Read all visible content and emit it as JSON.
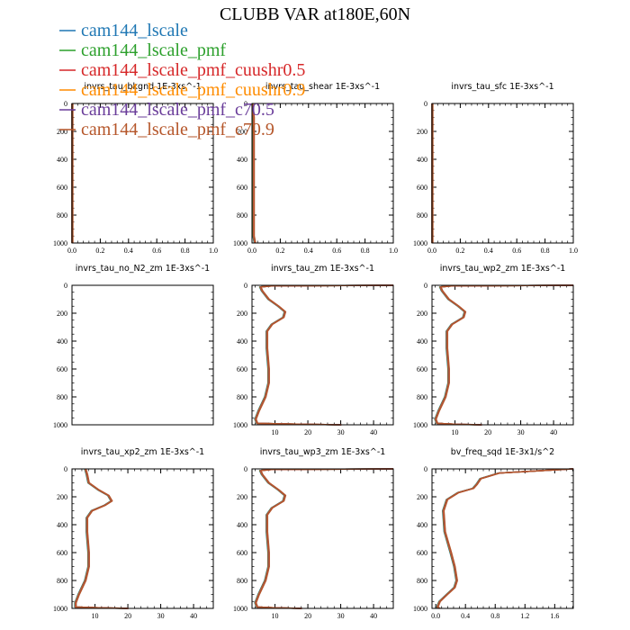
{
  "title": "CLUBB VAR at180E,60N",
  "series": [
    {
      "name": "cam144_lscale",
      "color": "#1f77b4"
    },
    {
      "name": "cam144_lscale_pmf",
      "color": "#2ca02c"
    },
    {
      "name": "cam144_lscale_pmf_cuushr0.5",
      "color": "#d62728"
    },
    {
      "name": "cam144_lscale_pmf_cuushr0.9",
      "color": "#ff8c00"
    },
    {
      "name": "cam144_lscale_pmf_c70.5",
      "color": "#6a3d9a"
    },
    {
      "name": "cam144_lscale_pmf_c70.9",
      "color": "#b5562a"
    }
  ],
  "chart_data": [
    {
      "type": "line",
      "title": "invrs_tau_bkgnd   1E-3xs^-1",
      "xlim": [
        0,
        1
      ],
      "ylim": [
        1000,
        0
      ],
      "xticks": [
        "0.0",
        "0.2",
        "0.4",
        "0.6",
        "0.8",
        "1.0"
      ],
      "yticks": [
        "0",
        "200",
        "400",
        "600",
        "800",
        "1000"
      ],
      "profile": {
        "x": [
          0,
          0
        ],
        "y": [
          0,
          1000
        ]
      }
    },
    {
      "type": "line",
      "title": "invrs_tau_shear   1E-3xs^-1",
      "xlim": [
        0,
        1
      ],
      "ylim": [
        1000,
        0
      ],
      "xticks": [
        "0.0",
        "0.2",
        "0.4",
        "0.6",
        "0.8",
        "1.0"
      ],
      "yticks": [
        "0",
        "200",
        "400",
        "600",
        "800",
        "1000"
      ],
      "profile": {
        "x": [
          0,
          0.01,
          0.01,
          0.01,
          0.01,
          0.02
        ],
        "y": [
          0,
          100,
          400,
          700,
          950,
          1000
        ]
      }
    },
    {
      "type": "line",
      "title": "invrs_tau_sfc   1E-3xs^-1",
      "xlim": [
        0,
        1
      ],
      "ylim": [
        1000,
        0
      ],
      "xticks": [
        "0.0",
        "0.2",
        "0.4",
        "0.6",
        "0.8",
        "1.0"
      ],
      "yticks": [
        "0",
        "200",
        "400",
        "600",
        "800",
        "1000"
      ],
      "profile": {
        "x": [
          0,
          0
        ],
        "y": [
          0,
          1000
        ]
      }
    },
    {
      "type": "line",
      "title": "invrs_tau_no_N2_zm   1E-3xs^-1",
      "xlim": [
        0,
        1
      ],
      "ylim": [
        1000,
        0
      ],
      "xticks": [],
      "yticks": [
        "0",
        "200",
        "400",
        "600",
        "800",
        "1000"
      ],
      "profile": {
        "x": [],
        "y": []
      }
    },
    {
      "type": "line",
      "title": "invrs_tau_zm   1E-3xs^-1",
      "xlim": [
        3,
        46
      ],
      "ylim": [
        1000,
        0
      ],
      "xticks": [
        "10",
        "20",
        "30",
        "40"
      ],
      "yticks": [
        "0",
        "200",
        "400",
        "600",
        "800",
        "1000"
      ],
      "profile": {
        "x": [
          46,
          9,
          5.5,
          6,
          8,
          11,
          13,
          12.5,
          9,
          7.5,
          7.5,
          8,
          8,
          7,
          5,
          4,
          4.5,
          18,
          30
        ],
        "y": [
          0,
          4,
          12,
          40,
          100,
          150,
          190,
          230,
          280,
          330,
          450,
          600,
          700,
          800,
          900,
          960,
          990,
          996,
          1000
        ]
      }
    },
    {
      "type": "line",
      "title": "invrs_tau_wp2_zm   1E-3xs^-1",
      "xlim": [
        3,
        46
      ],
      "ylim": [
        1000,
        0
      ],
      "xticks": [
        "10",
        "20",
        "30",
        "40"
      ],
      "yticks": [
        "0",
        "200",
        "400",
        "600",
        "800",
        "1000"
      ],
      "profile": {
        "x": [
          46,
          9,
          5.5,
          6,
          8,
          11,
          13,
          12.5,
          9,
          7.5,
          7.5,
          8,
          8,
          7,
          5,
          4,
          4.5,
          10,
          18
        ],
        "y": [
          0,
          4,
          12,
          40,
          100,
          150,
          190,
          230,
          280,
          330,
          450,
          600,
          700,
          800,
          900,
          960,
          990,
          996,
          1000
        ]
      }
    },
    {
      "type": "line",
      "title": "invrs_tau_xp2_zm   1E-3xs^-1",
      "xlim": [
        3,
        46
      ],
      "ylim": [
        1000,
        0
      ],
      "xticks": [
        "10",
        "20",
        "30",
        "40"
      ],
      "yticks": [
        "0",
        "200",
        "400",
        "600",
        "800",
        "1000"
      ],
      "profile": {
        "x": [
          7,
          7.5,
          8,
          11,
          14,
          15,
          13,
          9,
          7.5,
          7.5,
          8,
          8,
          7,
          5,
          4,
          4,
          12,
          20
        ],
        "y": [
          0,
          40,
          100,
          150,
          190,
          230,
          260,
          300,
          350,
          450,
          600,
          700,
          800,
          900,
          960,
          990,
          996,
          1000
        ]
      }
    },
    {
      "type": "line",
      "title": "invrs_tau_wp3_zm   1E-3xs^-1",
      "xlim": [
        3,
        46
      ],
      "ylim": [
        1000,
        0
      ],
      "xticks": [
        "10",
        "20",
        "30",
        "40"
      ],
      "yticks": [
        "0",
        "200",
        "400",
        "600",
        "800",
        "1000"
      ],
      "profile": {
        "x": [
          46,
          9,
          5.5,
          6,
          8,
          11,
          13,
          12.5,
          9,
          7.5,
          7.5,
          8,
          8,
          7,
          5,
          4,
          4.5,
          10,
          18
        ],
        "y": [
          0,
          4,
          12,
          40,
          100,
          150,
          190,
          230,
          280,
          330,
          450,
          600,
          700,
          800,
          900,
          960,
          990,
          996,
          1000
        ]
      }
    },
    {
      "type": "line",
      "title": "bv_freq_sqd   1E-3x1/s^2",
      "xlim": [
        -0.05,
        1.85
      ],
      "ylim": [
        1000,
        0
      ],
      "xticks": [
        "0.0",
        "0.4",
        "0.8",
        "1.2",
        "1.6"
      ],
      "yticks": [
        "0",
        "200",
        "400",
        "600",
        "800",
        "1000"
      ],
      "profile": {
        "x": [
          1.85,
          0.85,
          0.6,
          0.55,
          0.5,
          0.3,
          0.15,
          0.1,
          0.12,
          0.2,
          0.25,
          0.28,
          0.25,
          0.15,
          0.05,
          0.02,
          0.05
        ],
        "y": [
          0,
          30,
          70,
          110,
          140,
          170,
          220,
          300,
          450,
          600,
          700,
          800,
          850,
          900,
          950,
          990,
          1000
        ]
      }
    }
  ]
}
